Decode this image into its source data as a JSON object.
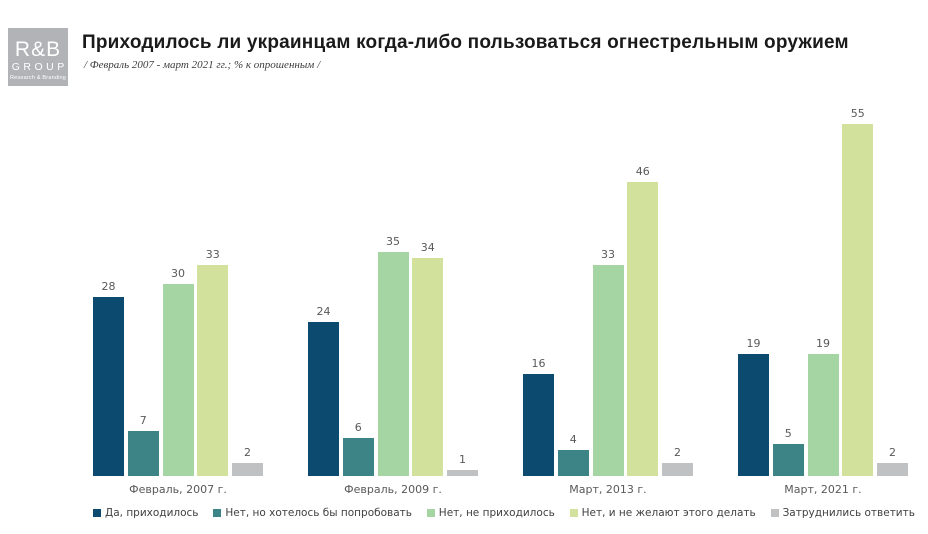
{
  "logo": {
    "brand": "R&B",
    "group": "GROUP",
    "tagline": "Research & Branding"
  },
  "header": {
    "title": "Приходилось ли украинцам когда-либо пользоваться огнестрельным оружием",
    "subtitle": "/ Февраль 2007 - март 2021 гг.; % к опрошенным /"
  },
  "chart_data": {
    "type": "bar",
    "title": "Приходилось ли украинцам когда-либо пользоваться огнестрельным оружием",
    "subtitle": "/ Февраль 2007 - март 2021 гг.; % к опрошенным /",
    "categories": [
      "Февраль, 2007 г.",
      "Февраль, 2009 г.",
      "Март, 2013 г.",
      "Март, 2021 г."
    ],
    "series": [
      {
        "name": "Да, приходилось",
        "color": "#0d4a6f",
        "values": [
          28,
          24,
          16,
          19
        ]
      },
      {
        "name": "Нет, но хотелось бы попробовать",
        "color": "#3c8486",
        "values": [
          7,
          6,
          4,
          5
        ]
      },
      {
        "name": "Нет, не приходилось",
        "color": "#a6d5a4",
        "values": [
          30,
          35,
          33,
          19
        ]
      },
      {
        "name": "Нет, и не желают этого делать",
        "color": "#d2e29c",
        "values": [
          33,
          34,
          46,
          55
        ]
      },
      {
        "name": "Затруднились ответить",
        "color": "#bfc1c3",
        "values": [
          2,
          1,
          2,
          2
        ]
      }
    ],
    "ylim": [
      0,
      58
    ],
    "grid": false,
    "axes_visible": false,
    "legend_position": "bottom",
    "value_labels": true,
    "value_label_color": "#595959",
    "category_label_color": "#595959"
  }
}
